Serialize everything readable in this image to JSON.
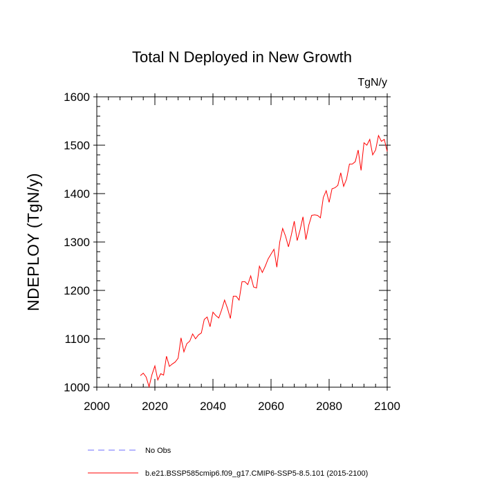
{
  "chart_data": {
    "type": "line",
    "title": "Total N Deployed in New Growth",
    "units_label": "TgN/y",
    "ylabel": "NDEPLOY  (TgN/y)",
    "xlabel": "",
    "xlim": [
      2000,
      2100
    ],
    "ylim": [
      1000,
      1600
    ],
    "x_ticks": [
      2000,
      2020,
      2040,
      2060,
      2080,
      2100
    ],
    "y_ticks": [
      1000,
      1100,
      1200,
      1300,
      1400,
      1500,
      1600
    ],
    "grid": false,
    "legend_position": "bottom",
    "legend": [
      {
        "label": "No Obs",
        "color": "#6b6bff",
        "style": "dashed"
      },
      {
        "label": "b.e21.BSSP585cmip6.f09_g17.CMIP6-SSP5-8.5.101 (2015-2100)",
        "color": "#ff0000",
        "style": "solid"
      }
    ],
    "series": [
      {
        "name": "b.e21.BSSP585cmip6.f09_g17.CMIP6-SSP5-8.5.101 (2015-2100)",
        "color": "#ff0000",
        "x": [
          2015,
          2016,
          2017,
          2018,
          2019,
          2020,
          2021,
          2022,
          2023,
          2024,
          2025,
          2026,
          2027,
          2028,
          2029,
          2030,
          2031,
          2032,
          2033,
          2034,
          2035,
          2036,
          2037,
          2038,
          2039,
          2040,
          2041,
          2042,
          2043,
          2044,
          2045,
          2046,
          2047,
          2048,
          2049,
          2050,
          2051,
          2052,
          2053,
          2054,
          2055,
          2056,
          2057,
          2058,
          2059,
          2060,
          2061,
          2062,
          2063,
          2064,
          2065,
          2066,
          2067,
          2068,
          2069,
          2070,
          2071,
          2072,
          2073,
          2074,
          2075,
          2076,
          2077,
          2078,
          2079,
          2080,
          2081,
          2082,
          2083,
          2084,
          2085,
          2086,
          2087,
          2088,
          2089,
          2090,
          2091,
          2092,
          2093,
          2094,
          2095,
          2096,
          2097,
          2098,
          2099,
          2100
        ],
        "values": [
          1024,
          1029,
          1021,
          1001,
          1026,
          1044,
          1015,
          1028,
          1025,
          1064,
          1043,
          1048,
          1052,
          1060,
          1102,
          1073,
          1090,
          1095,
          1110,
          1100,
          1108,
          1112,
          1140,
          1145,
          1125,
          1155,
          1148,
          1143,
          1160,
          1180,
          1163,
          1142,
          1188,
          1188,
          1180,
          1218,
          1218,
          1212,
          1230,
          1207,
          1205,
          1250,
          1237,
          1250,
          1265,
          1275,
          1285,
          1248,
          1300,
          1328,
          1312,
          1290,
          1315,
          1343,
          1303,
          1325,
          1352,
          1305,
          1335,
          1355,
          1356,
          1355,
          1350,
          1392,
          1406,
          1382,
          1410,
          1412,
          1417,
          1443,
          1415,
          1430,
          1461,
          1461,
          1466,
          1490,
          1448,
          1505,
          1500,
          1512,
          1480,
          1490,
          1520,
          1508,
          1512,
          1487
        ]
      }
    ]
  }
}
